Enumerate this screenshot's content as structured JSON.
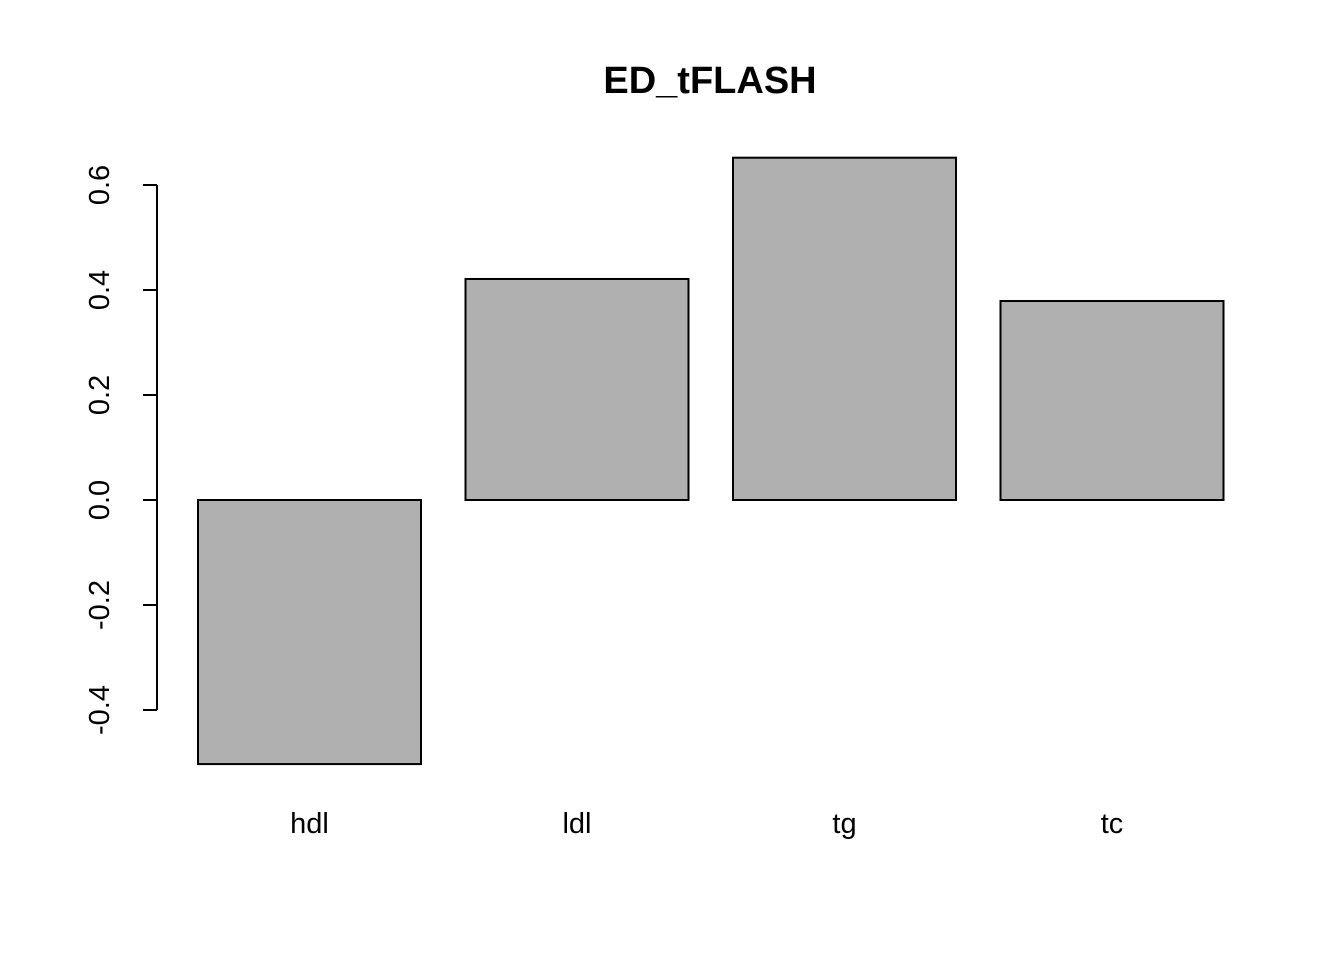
{
  "chart_data": {
    "type": "bar",
    "title": "ED_tFLASH",
    "xlabel": "",
    "ylabel": "",
    "categories": [
      "hdl",
      "ldl",
      "tg",
      "tc"
    ],
    "values": [
      -0.503,
      0.421,
      0.652,
      0.379
    ],
    "yticks": [
      -0.4,
      -0.2,
      0.0,
      0.2,
      0.4,
      0.6
    ],
    "ytick_labels": [
      "-0.4",
      "-0.2",
      "0.0",
      "0.2",
      "0.4",
      "0.6"
    ],
    "bar_color": "#b0b0b0",
    "grid": false,
    "legend": false
  }
}
